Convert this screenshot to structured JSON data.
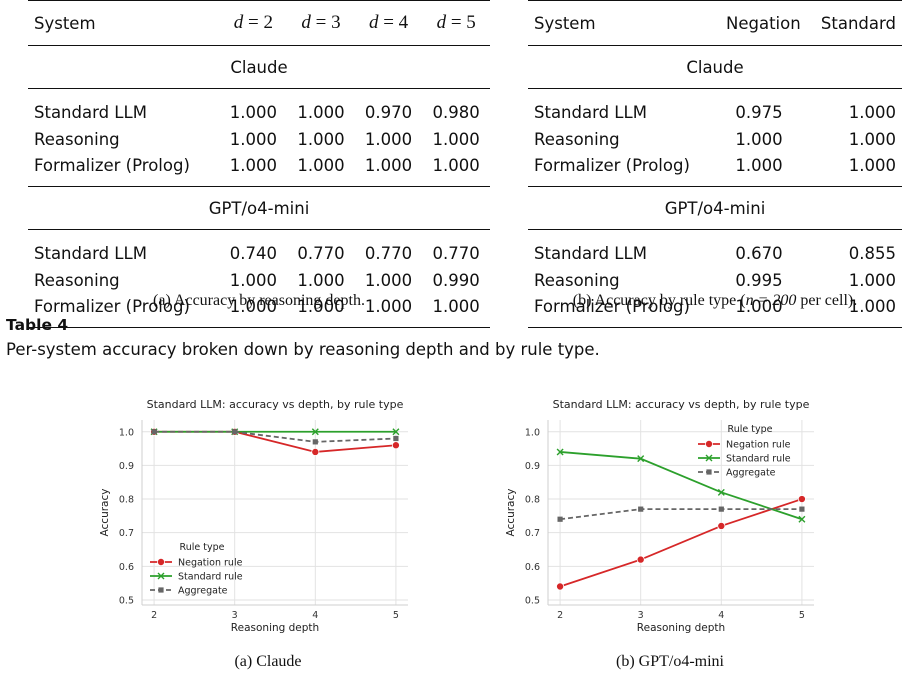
{
  "table_a": {
    "headers": [
      "System",
      "d = 2",
      "d = 3",
      "d = 4",
      "d = 5"
    ],
    "header_math": [
      "d",
      "2",
      "3",
      "4",
      "5"
    ],
    "groups": [
      {
        "name": "Claude",
        "rows": [
          {
            "system": "Standard LLM",
            "values": [
              "1.000",
              "1.000",
              "0.970",
              "0.980"
            ]
          },
          {
            "system": "Reasoning",
            "values": [
              "1.000",
              "1.000",
              "1.000",
              "1.000"
            ]
          },
          {
            "system": "Formalizer (Prolog)",
            "values": [
              "1.000",
              "1.000",
              "1.000",
              "1.000"
            ]
          }
        ]
      },
      {
        "name": "GPT/o4-mini",
        "rows": [
          {
            "system": "Standard LLM",
            "values": [
              "0.740",
              "0.770",
              "0.770",
              "0.770"
            ]
          },
          {
            "system": "Reasoning",
            "values": [
              "1.000",
              "1.000",
              "1.000",
              "0.990"
            ]
          },
          {
            "system": "Formalizer (Prolog)",
            "values": [
              "1.000",
              "1.000",
              "1.000",
              "1.000"
            ]
          }
        ]
      }
    ],
    "caption": "(a) Accuracy by reasoning depth."
  },
  "table_b": {
    "headers": [
      "System",
      "Negation",
      "Standard"
    ],
    "groups": [
      {
        "name": "Claude",
        "rows": [
          {
            "system": "Standard LLM",
            "values": [
              "0.975",
              "1.000"
            ]
          },
          {
            "system": "Reasoning",
            "values": [
              "1.000",
              "1.000"
            ]
          },
          {
            "system": "Formalizer (Prolog)",
            "values": [
              "1.000",
              "1.000"
            ]
          }
        ]
      },
      {
        "name": "GPT/o4-mini",
        "rows": [
          {
            "system": "Standard LLM",
            "values": [
              "0.670",
              "0.855"
            ]
          },
          {
            "system": "Reasoning",
            "values": [
              "0.995",
              "1.000"
            ]
          },
          {
            "system": "Formalizer (Prolog)",
            "values": [
              "1.000",
              "1.000"
            ]
          }
        ]
      }
    ],
    "caption_prefix": "(b) Accuracy by rule type (",
    "caption_math": "n = 200",
    "caption_suffix": " per cell)."
  },
  "table_label": "Table 4",
  "table_caption": "Per-system accuracy broken down by reasoning depth and by rule type.",
  "colors": {
    "negation": "#d62728",
    "standard": "#2ca02c",
    "aggregate": "#666666",
    "grid": "#e2e2e2"
  },
  "chart_data": [
    {
      "type": "line",
      "title": "Standard LLM: accuracy vs depth, by rule type",
      "xlabel": "Reasoning depth",
      "ylabel": "Accuracy",
      "x": [
        2,
        3,
        4,
        5
      ],
      "yticks": [
        "0.5",
        "0.6",
        "0.7",
        "0.8",
        "0.9",
        "1.0"
      ],
      "ylim": [
        0.5,
        1.0
      ],
      "grid": true,
      "legend_title": "Rule type",
      "legend_position": "lower-left",
      "series": [
        {
          "name": "Negation rule",
          "values": [
            1.0,
            1.0,
            0.94,
            0.96
          ],
          "marker": "circle",
          "style": "solid"
        },
        {
          "name": "Standard rule",
          "values": [
            1.0,
            1.0,
            1.0,
            1.0
          ],
          "marker": "x",
          "style": "solid"
        },
        {
          "name": "Aggregate",
          "values": [
            1.0,
            1.0,
            0.97,
            0.98
          ],
          "marker": "square",
          "style": "dashed"
        }
      ],
      "caption": "(a) Claude"
    },
    {
      "type": "line",
      "title": "Standard LLM: accuracy vs depth, by rule type",
      "xlabel": "Reasoning depth",
      "ylabel": "Accuracy",
      "x": [
        2,
        3,
        4,
        5
      ],
      "yticks": [
        "0.5",
        "0.6",
        "0.7",
        "0.8",
        "0.9",
        "1.0"
      ],
      "ylim": [
        0.5,
        1.0
      ],
      "grid": true,
      "legend_title": "Rule type",
      "legend_position": "upper-right",
      "series": [
        {
          "name": "Negation rule",
          "values": [
            0.54,
            0.62,
            0.72,
            0.8
          ],
          "marker": "circle",
          "style": "solid"
        },
        {
          "name": "Standard rule",
          "values": [
            0.94,
            0.92,
            0.82,
            0.74
          ],
          "marker": "x",
          "style": "solid"
        },
        {
          "name": "Aggregate",
          "values": [
            0.74,
            0.77,
            0.77,
            0.77
          ],
          "marker": "square",
          "style": "dashed"
        }
      ],
      "caption": "(b) GPT/o4-mini"
    }
  ]
}
